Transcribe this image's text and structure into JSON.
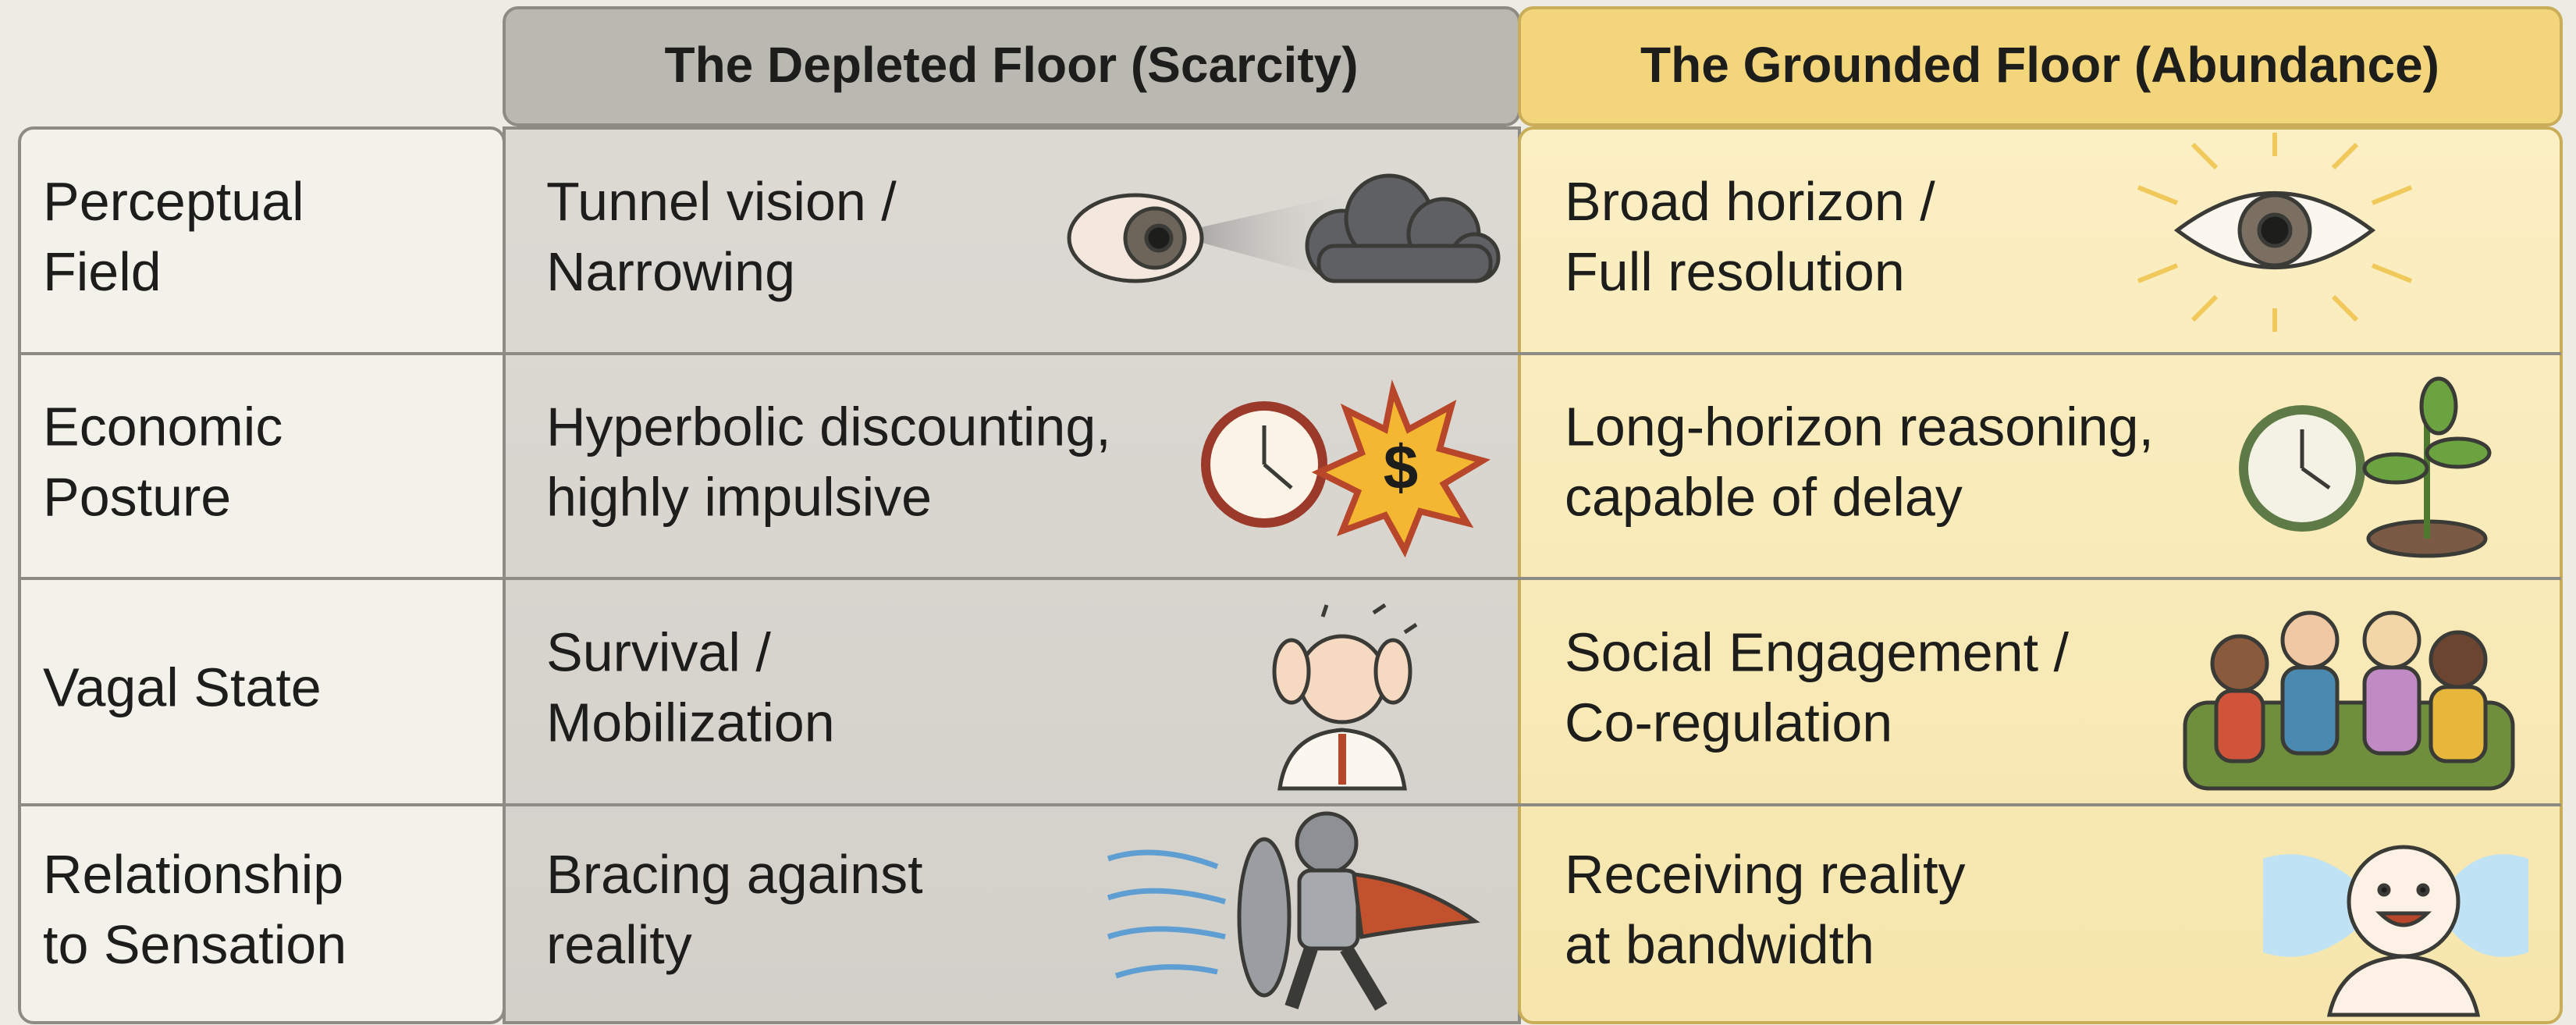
{
  "table": {
    "header": [
      "The Depleted Floor (Scarcity)",
      "The Grounded Floor (Abundance)"
    ],
    "rows": [
      [
        [
          "Perceptual",
          "Field"
        ],
        [
          "Tunnel vision /",
          "Narrowing"
        ],
        [
          "Broad horizon /",
          "Full resolution"
        ]
      ],
      [
        [
          "Economic",
          "Posture"
        ],
        [
          "Hyperbolic discounting,",
          "highly impulsive"
        ],
        [
          "Long-horizon reasoning,",
          "capable of delay"
        ]
      ],
      [
        [
          "Vagal State"
        ],
        [
          "Survival /",
          "Mobilization"
        ],
        [
          "Social Engagement /",
          "Co-regulation"
        ]
      ],
      [
        [
          "Relationship",
          "to Sensation"
        ],
        [
          "Bracing against",
          "reality"
        ],
        [
          "Receiving reality",
          "at bandwidth"
        ]
      ]
    ]
  }
}
